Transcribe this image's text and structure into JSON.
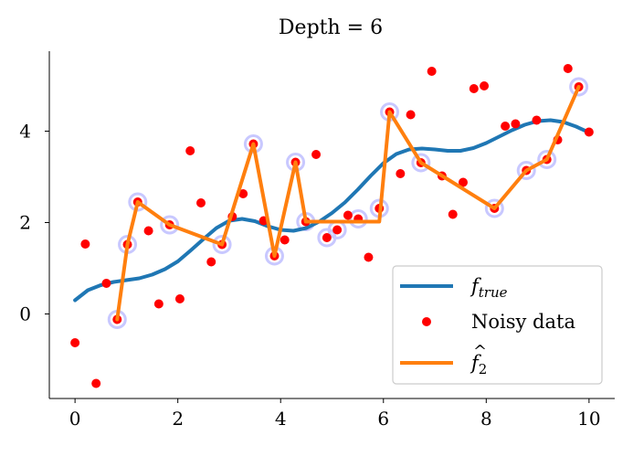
{
  "chart_data": {
    "type": "line",
    "title": "Depth = 6",
    "xlabel": "",
    "ylabel": "",
    "xlim": [
      -0.5,
      10.5
    ],
    "ylim": [
      -1.85,
      5.75
    ],
    "xticks": [
      0,
      2,
      4,
      6,
      8,
      10
    ],
    "yticks": [
      0,
      2,
      4
    ],
    "grid": false,
    "legend_position": "bottom-right",
    "colors": {
      "f_true": "#1f77b4",
      "noisy": "#ff0000",
      "fhat": "#ff7f0e",
      "highlight": "#c8c8ff"
    },
    "series": [
      {
        "name": "f_true",
        "kind": "line",
        "x": [
          0,
          0.25,
          0.5,
          0.75,
          1,
          1.25,
          1.5,
          1.75,
          2,
          2.25,
          2.5,
          2.75,
          3,
          3.25,
          3.5,
          3.75,
          4,
          4.25,
          4.5,
          4.75,
          5,
          5.25,
          5.5,
          5.75,
          6,
          6.25,
          6.5,
          6.75,
          7,
          7.25,
          7.5,
          7.75,
          8,
          8.25,
          8.5,
          8.75,
          9,
          9.25,
          9.5,
          9.75,
          10
        ],
        "y": [
          0.3,
          0.52,
          0.63,
          0.7,
          0.74,
          0.78,
          0.86,
          0.98,
          1.15,
          1.39,
          1.64,
          1.88,
          2.04,
          2.08,
          2.03,
          1.92,
          1.84,
          1.82,
          1.88,
          2.02,
          2.21,
          2.44,
          2.72,
          3.02,
          3.3,
          3.5,
          3.6,
          3.62,
          3.6,
          3.57,
          3.57,
          3.63,
          3.74,
          3.88,
          4.02,
          4.14,
          4.22,
          4.24,
          4.2,
          4.1,
          3.97
        ]
      },
      {
        "name": "Noisy data",
        "kind": "scatter",
        "x": [
          0.0,
          0.2,
          0.41,
          0.61,
          0.82,
          1.02,
          1.22,
          1.43,
          1.63,
          1.84,
          2.04,
          2.24,
          2.45,
          2.65,
          2.86,
          3.06,
          3.27,
          3.47,
          3.67,
          3.88,
          4.08,
          4.29,
          4.49,
          4.69,
          4.9,
          5.1,
          5.31,
          5.51,
          5.71,
          5.92,
          6.12,
          6.33,
          6.53,
          6.73,
          6.94,
          7.14,
          7.35,
          7.55,
          7.76,
          7.96,
          8.16,
          8.37,
          8.57,
          8.78,
          8.98,
          9.18,
          9.39,
          9.59,
          9.8,
          10.0
        ],
        "y": [
          -0.63,
          1.53,
          -1.52,
          0.67,
          -0.12,
          1.52,
          2.45,
          1.82,
          0.22,
          1.95,
          0.33,
          3.57,
          2.43,
          1.14,
          1.52,
          2.13,
          2.63,
          3.72,
          2.04,
          1.27,
          1.62,
          3.32,
          2.02,
          3.49,
          1.67,
          1.84,
          2.16,
          2.08,
          1.24,
          2.31,
          4.42,
          3.07,
          4.36,
          3.31,
          5.31,
          3.02,
          2.18,
          2.88,
          4.93,
          4.99,
          2.31,
          4.11,
          4.16,
          3.14,
          4.24,
          3.38,
          3.81,
          5.37,
          4.97,
          3.98
        ]
      },
      {
        "name": "f_hat_2",
        "kind": "line",
        "x": [
          0.82,
          1.02,
          1.22,
          1.84,
          2.86,
          3.47,
          3.88,
          4.29,
          4.49,
          5.1,
          5.51,
          5.92,
          6.12,
          6.73,
          8.16,
          8.78,
          9.18,
          9.8
        ],
        "y": [
          -0.12,
          1.52,
          2.45,
          1.95,
          1.52,
          3.72,
          1.27,
          3.32,
          2.02,
          2.02,
          2.02,
          2.02,
          4.42,
          3.31,
          2.31,
          3.14,
          3.38,
          4.97
        ]
      }
    ],
    "highlighted_points": {
      "x": [
        0.82,
        1.02,
        1.22,
        1.84,
        2.86,
        3.47,
        3.88,
        4.29,
        4.49,
        4.9,
        5.1,
        5.51,
        5.92,
        6.12,
        6.73,
        8.16,
        8.78,
        9.18,
        9.8
      ],
      "y": [
        -0.12,
        1.52,
        2.45,
        1.95,
        1.52,
        3.72,
        1.27,
        3.32,
        2.02,
        1.67,
        1.84,
        2.08,
        2.31,
        4.42,
        3.31,
        2.31,
        3.14,
        3.38,
        4.97
      ]
    },
    "legend": [
      {
        "label_main": "f",
        "label_sub": "true",
        "series": "f_true"
      },
      {
        "label_main": "Noisy data",
        "series": "Noisy data"
      },
      {
        "label_main": "f",
        "label_sub": "2",
        "series": "f_hat_2"
      }
    ]
  }
}
